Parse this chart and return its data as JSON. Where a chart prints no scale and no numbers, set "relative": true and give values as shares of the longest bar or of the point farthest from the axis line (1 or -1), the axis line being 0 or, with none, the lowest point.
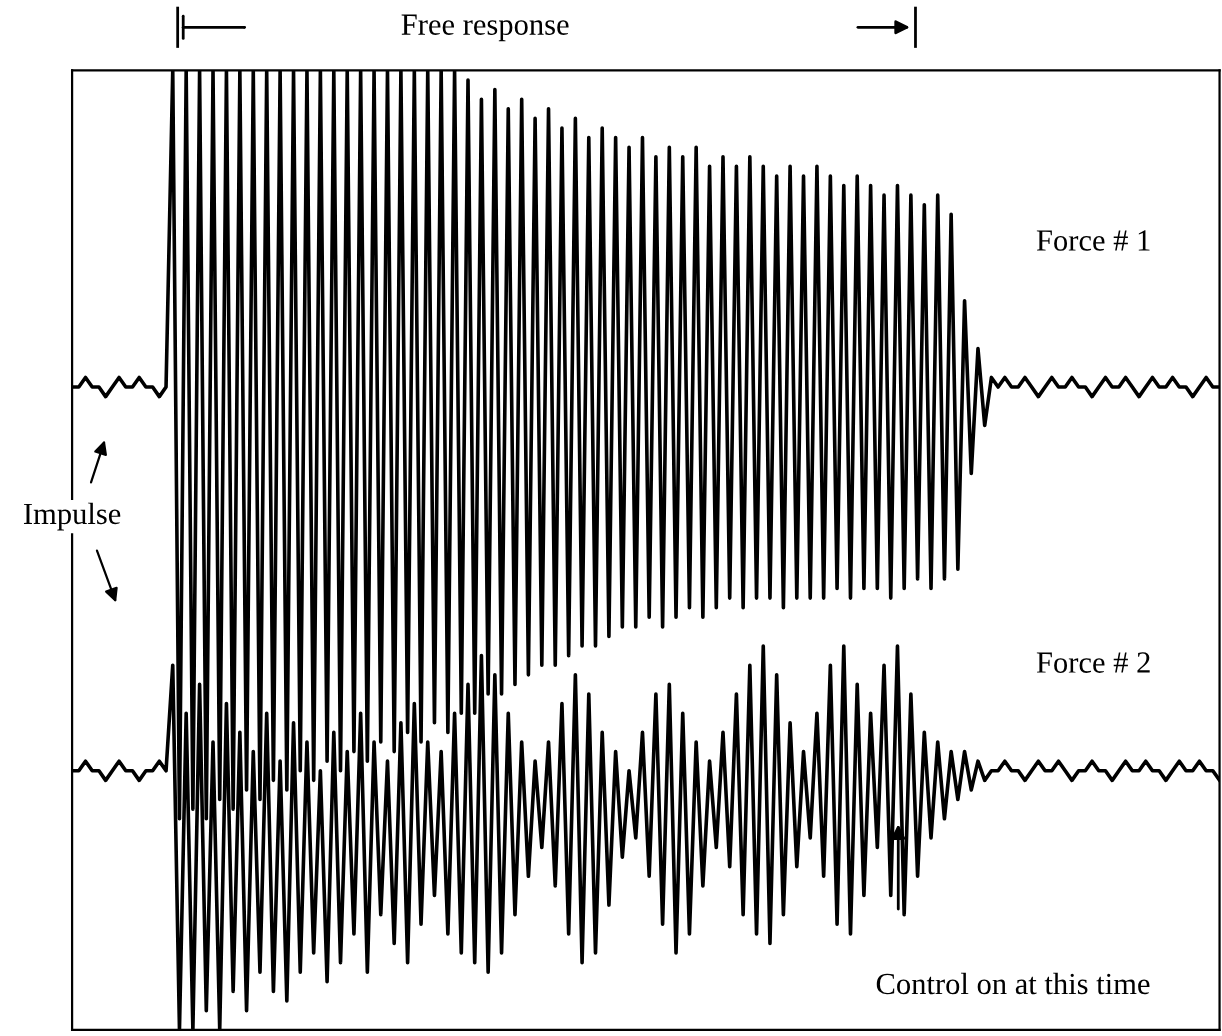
{
  "chart_data": {
    "type": "line",
    "relative": true,
    "categories": [
      null,
      null,
      null,
      null,
      null,
      null,
      null,
      null,
      null,
      null,
      null,
      null,
      null,
      null,
      null,
      null,
      null,
      null,
      null,
      null,
      null,
      null,
      null,
      null,
      null,
      null,
      null,
      null,
      null,
      null,
      null,
      null,
      null,
      null,
      null,
      null,
      null,
      null,
      null,
      null,
      null,
      null,
      null,
      null,
      null,
      null,
      null,
      null,
      null,
      null,
      null,
      null,
      null,
      null,
      null,
      null,
      null,
      null,
      null,
      null,
      null,
      null,
      null,
      null,
      null,
      null,
      null,
      null,
      null,
      null,
      null,
      null,
      null,
      null,
      null,
      null,
      null,
      null,
      null,
      null,
      null,
      null,
      null,
      null,
      null,
      null,
      null,
      null,
      null,
      null,
      null,
      null,
      null,
      null,
      null,
      null,
      null,
      null,
      null,
      null,
      null,
      null,
      null,
      null,
      null,
      null,
      null,
      null,
      null,
      null,
      null,
      null,
      null,
      null,
      null,
      null,
      null,
      null,
      null,
      null,
      null,
      null,
      null,
      null,
      null,
      null,
      null,
      null,
      null,
      null,
      null,
      null,
      null,
      null,
      null,
      null,
      null,
      null,
      null,
      null,
      null,
      null,
      null,
      null,
      null,
      null,
      null,
      null,
      null,
      null,
      null,
      null,
      null,
      null,
      null,
      null,
      null,
      null,
      null,
      null,
      null,
      null,
      null,
      null,
      null,
      null,
      null,
      null,
      null,
      null,
      null,
      null
    ],
    "series": [
      {
        "name": "Force # 1",
        "color": "#000000",
        "values": [
          0.67,
          0.67,
          0.68,
          0.67,
          0.67,
          0.66,
          0.67,
          0.68,
          0.67,
          0.67,
          0.68,
          0.67,
          0.67,
          0.66,
          0.67,
          1.0,
          0.22,
          1.0,
          0.23,
          1.0,
          0.22,
          1.0,
          0.24,
          1.0,
          0.23,
          1.0,
          0.25,
          1.0,
          0.24,
          1.0,
          0.26,
          1.0,
          0.25,
          1.0,
          0.27,
          1.0,
          0.26,
          1.0,
          0.28,
          1.0,
          0.27,
          1.0,
          0.29,
          1.0,
          0.28,
          1.0,
          0.3,
          1.0,
          0.29,
          1.0,
          0.31,
          1.0,
          0.3,
          1.0,
          0.32,
          1.0,
          0.31,
          1.0,
          0.33,
          0.99,
          0.33,
          0.97,
          0.35,
          0.98,
          0.35,
          0.96,
          0.36,
          0.97,
          0.37,
          0.95,
          0.38,
          0.96,
          0.38,
          0.94,
          0.39,
          0.95,
          0.4,
          0.93,
          0.4,
          0.94,
          0.41,
          0.93,
          0.42,
          0.92,
          0.42,
          0.93,
          0.43,
          0.91,
          0.42,
          0.92,
          0.43,
          0.91,
          0.44,
          0.92,
          0.43,
          0.9,
          0.44,
          0.91,
          0.45,
          0.9,
          0.44,
          0.91,
          0.45,
          0.9,
          0.45,
          0.89,
          0.44,
          0.9,
          0.45,
          0.89,
          0.45,
          0.9,
          0.45,
          0.89,
          0.46,
          0.88,
          0.45,
          0.89,
          0.46,
          0.88,
          0.46,
          0.87,
          0.45,
          0.88,
          0.46,
          0.87,
          0.47,
          0.86,
          0.46,
          0.87,
          0.47,
          0.85,
          0.48,
          0.76,
          0.58,
          0.71,
          0.63,
          0.68,
          0.67,
          0.68,
          0.67,
          0.67,
          0.68,
          0.67,
          0.66,
          0.67,
          0.68,
          0.67,
          0.67,
          0.68,
          0.67,
          0.67,
          0.66,
          0.67,
          0.68,
          0.67,
          0.67,
          0.68,
          0.67,
          0.66,
          0.67,
          0.68,
          0.67,
          0.67,
          0.68,
          0.67,
          0.67,
          0.66,
          0.67,
          0.68,
          0.67,
          0.67
        ]
      },
      {
        "name": "Force # 2",
        "color": "#000000",
        "values": [
          0.27,
          0.27,
          0.28,
          0.27,
          0.27,
          0.26,
          0.27,
          0.28,
          0.27,
          0.27,
          0.26,
          0.27,
          0.27,
          0.28,
          0.27,
          0.38,
          0.0,
          0.33,
          0.0,
          0.36,
          0.02,
          0.3,
          0.0,
          0.34,
          0.04,
          0.31,
          0.02,
          0.29,
          0.06,
          0.33,
          0.04,
          0.28,
          0.03,
          0.32,
          0.06,
          0.3,
          0.08,
          0.27,
          0.05,
          0.31,
          0.07,
          0.29,
          0.1,
          0.33,
          0.06,
          0.3,
          0.12,
          0.28,
          0.09,
          0.32,
          0.07,
          0.34,
          0.11,
          0.3,
          0.14,
          0.29,
          0.1,
          0.33,
          0.08,
          0.36,
          0.07,
          0.39,
          0.06,
          0.37,
          0.08,
          0.33,
          0.12,
          0.3,
          0.16,
          0.28,
          0.19,
          0.3,
          0.15,
          0.34,
          0.1,
          0.37,
          0.07,
          0.35,
          0.08,
          0.31,
          0.13,
          0.29,
          0.18,
          0.27,
          0.2,
          0.31,
          0.16,
          0.35,
          0.11,
          0.36,
          0.08,
          0.33,
          0.1,
          0.3,
          0.15,
          0.28,
          0.19,
          0.31,
          0.17,
          0.35,
          0.12,
          0.38,
          0.1,
          0.4,
          0.09,
          0.37,
          0.12,
          0.32,
          0.17,
          0.29,
          0.2,
          0.33,
          0.16,
          0.38,
          0.11,
          0.4,
          0.1,
          0.36,
          0.14,
          0.33,
          0.19,
          0.38,
          0.14,
          0.4,
          0.12,
          0.35,
          0.16,
          0.31,
          0.2,
          0.3,
          0.22,
          0.29,
          0.24,
          0.29,
          0.25,
          0.28,
          0.26,
          0.27,
          0.27,
          0.28,
          0.27,
          0.27,
          0.26,
          0.27,
          0.28,
          0.27,
          0.27,
          0.28,
          0.27,
          0.26,
          0.27,
          0.27,
          0.28,
          0.27,
          0.27,
          0.26,
          0.27,
          0.28,
          0.27,
          0.27,
          0.28,
          0.27,
          0.27,
          0.26,
          0.27,
          0.28,
          0.27,
          0.27,
          0.28,
          0.27,
          0.27,
          0.26
        ]
      }
    ],
    "annotations": [
      "Free response",
      "Impulse",
      "Control on at this time"
    ]
  }
}
